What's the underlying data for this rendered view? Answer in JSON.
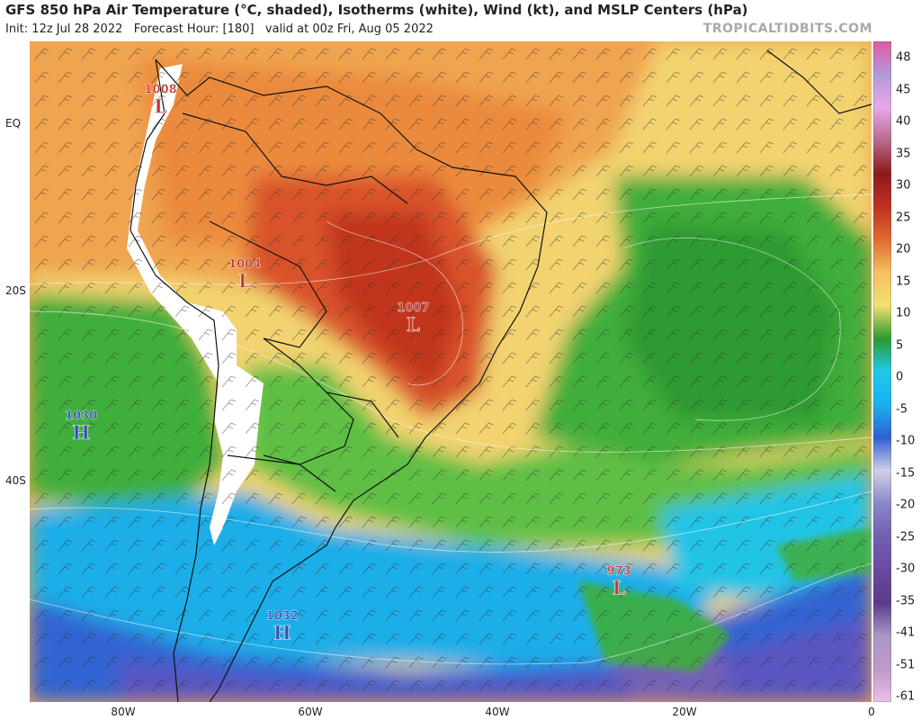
{
  "header": {
    "title": "GFS 850 hPa Air Temperature (°C, shaded), Isotherms (white), Wind (kt), and MSLP Centers (hPa)",
    "init_text": "Init: 12z Jul 28 2022",
    "forecast_text": "Forecast Hour: [180]",
    "valid_text": "valid at 00z Fri, Aug 05 2022",
    "brand": "TROPICALTIDBITS.COM"
  },
  "axes": {
    "lat_labels": [
      {
        "text": "EQ",
        "lat": 0
      },
      {
        "text": "20S",
        "lat": -20
      },
      {
        "text": "40S",
        "lat": -40
      }
    ],
    "lon_labels": [
      {
        "text": "80W",
        "lon": -80
      },
      {
        "text": "60W",
        "lon": -60
      },
      {
        "text": "40W",
        "lon": -40
      },
      {
        "text": "20W",
        "lon": -20
      },
      {
        "text": "0",
        "lon": 0
      }
    ]
  },
  "pressure_centers": [
    {
      "type": "L",
      "value": "1008",
      "lon": -76,
      "lat": 2.5,
      "color": "#c0392b"
    },
    {
      "type": "L",
      "value": "1004",
      "lon": -67,
      "lat": -18.5,
      "color": "#c0392b"
    },
    {
      "type": "L",
      "value": "1007",
      "lon": -49,
      "lat": -23.5,
      "color": "#c0392b"
    },
    {
      "type": "H",
      "value": "1030",
      "lon": -84.5,
      "lat": -35,
      "color": "#2c4fb8"
    },
    {
      "type": "H",
      "value": "1032",
      "lon": -63,
      "lat": -52.5,
      "color": "#2c4fb8"
    },
    {
      "type": "L",
      "value": "973",
      "lon": -27,
      "lat": -49,
      "color": "#c0392b"
    }
  ],
  "colorbar": {
    "ticks": [
      "48",
      "45",
      "40",
      "35",
      "30",
      "25",
      "20",
      "15",
      "10",
      "5",
      "0",
      "-5",
      "-10",
      "-15",
      "-20",
      "-25",
      "-30",
      "-35",
      "-41",
      "-51",
      "-61"
    ],
    "colors": [
      "#e05aa0",
      "#b09ad8",
      "#e8a8e8",
      "#b86a8a",
      "#8a1a1a",
      "#c03020",
      "#e06a30",
      "#f5c060",
      "#f2e070",
      "#2a9a30",
      "#20c8e8",
      "#1ab0f0",
      "#2f5fd0",
      "#d0d0e8",
      "#8a86c8",
      "#7060b0",
      "#6a4aa0",
      "#5a3a8a",
      "#a898c8",
      "#c098c8",
      "#e8c0e8"
    ]
  }
}
